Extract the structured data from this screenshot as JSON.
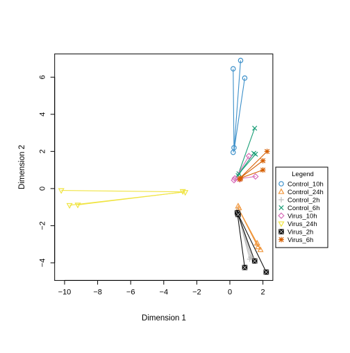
{
  "chart_data": {
    "type": "scatter",
    "title": "",
    "xlabel": "Dimension 1",
    "ylabel": "Dimension 2",
    "xlim": [
      -10.6,
      2.6
    ],
    "ylim": [
      -4.95,
      7.25
    ],
    "xticks": [
      -10,
      -8,
      -6,
      -4,
      -2,
      0,
      2
    ],
    "yticks": [
      -4,
      -2,
      0,
      2,
      4,
      6
    ],
    "grid": false,
    "legend_title": "Legend",
    "legend_position": "right",
    "series": [
      {
        "name": "Control_10h",
        "color": "#3b8fc9",
        "marker": "circle",
        "center": [
          0.25,
          2.05
        ],
        "points": [
          [
            0.2,
            6.45
          ],
          [
            0.65,
            6.9
          ],
          [
            0.9,
            5.95
          ],
          [
            0.2,
            1.95
          ],
          [
            0.25,
            2.2
          ]
        ]
      },
      {
        "name": "Control_24h",
        "color": "#f0953a",
        "marker": "triangle",
        "center": [
          0.5,
          -1.05
        ],
        "points": [
          [
            0.5,
            -0.95
          ],
          [
            1.65,
            -2.95
          ],
          [
            1.7,
            -3.15
          ],
          [
            1.85,
            -3.3
          ],
          [
            0.55,
            -1.05
          ]
        ]
      },
      {
        "name": "Control_2h",
        "color": "#bdbdbd",
        "marker": "plus",
        "center": [
          0.45,
          -1.2
        ],
        "points": [
          [
            1.2,
            -3.8
          ],
          [
            1.35,
            -3.75
          ],
          [
            1.25,
            -3.7
          ],
          [
            0.45,
            -1.2
          ],
          [
            0.5,
            -1.3
          ]
        ]
      },
      {
        "name": "Control_6h",
        "color": "#1a9e77",
        "marker": "x",
        "center": [
          0.5,
          0.75
        ],
        "points": [
          [
            1.5,
            3.25
          ],
          [
            1.55,
            1.85
          ],
          [
            1.45,
            1.9
          ],
          [
            0.55,
            0.8
          ],
          [
            0.5,
            0.7
          ]
        ]
      },
      {
        "name": "Virus_10h",
        "color": "#d86fb9",
        "marker": "diamond",
        "center": [
          0.3,
          0.5
        ],
        "points": [
          [
            1.15,
            1.75
          ],
          [
            1.55,
            0.65
          ],
          [
            0.25,
            0.45
          ],
          [
            0.3,
            0.55
          ],
          [
            0.6,
            0.5
          ]
        ]
      },
      {
        "name": "Virus_24h",
        "color": "#f0e442",
        "marker": "triangle-down",
        "center": [
          -2.75,
          -0.18
        ],
        "points": [
          [
            -10.2,
            -0.1
          ],
          [
            -9.7,
            -0.9
          ],
          [
            -9.2,
            -0.88
          ],
          [
            -2.7,
            -0.2
          ],
          [
            -2.85,
            -0.15
          ]
        ]
      },
      {
        "name": "Virus_2h",
        "color": "#111111",
        "marker": "square-x",
        "center": [
          0.45,
          -1.3
        ],
        "points": [
          [
            0.9,
            -4.25
          ],
          [
            1.5,
            -3.9
          ],
          [
            2.2,
            -4.5
          ],
          [
            0.45,
            -1.3
          ],
          [
            0.5,
            -1.4
          ]
        ]
      },
      {
        "name": "Virus_6h",
        "color": "#d55e00",
        "marker": "asterisk",
        "center": [
          0.6,
          0.55
        ],
        "points": [
          [
            2.25,
            2.0
          ],
          [
            2.0,
            1.5
          ],
          [
            2.0,
            1.0
          ],
          [
            0.6,
            0.5
          ],
          [
            0.65,
            0.55
          ]
        ]
      }
    ]
  }
}
